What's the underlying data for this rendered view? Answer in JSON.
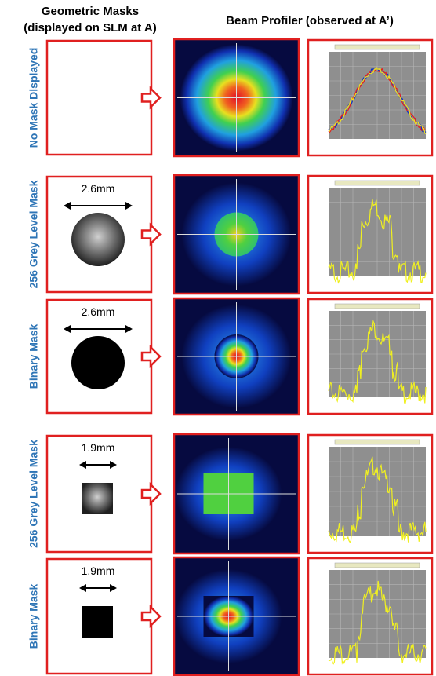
{
  "header": {
    "left": [
      "Geometric Masks",
      "(displayed on SLM at A)"
    ],
    "right": "Beam Profiler (observed at A’)"
  },
  "rows": [
    {
      "label": "No Mask Displayed"
    },
    {
      "label": "256 Grey Level Mask",
      "dimension": "2.6mm"
    },
    {
      "label": "Binary Mask",
      "dimension": "2.6mm"
    },
    {
      "label": "256 Grey Level Mask",
      "dimension": "1.9mm"
    },
    {
      "label": "Binary Mask",
      "dimension": "1.9mm"
    }
  ]
}
